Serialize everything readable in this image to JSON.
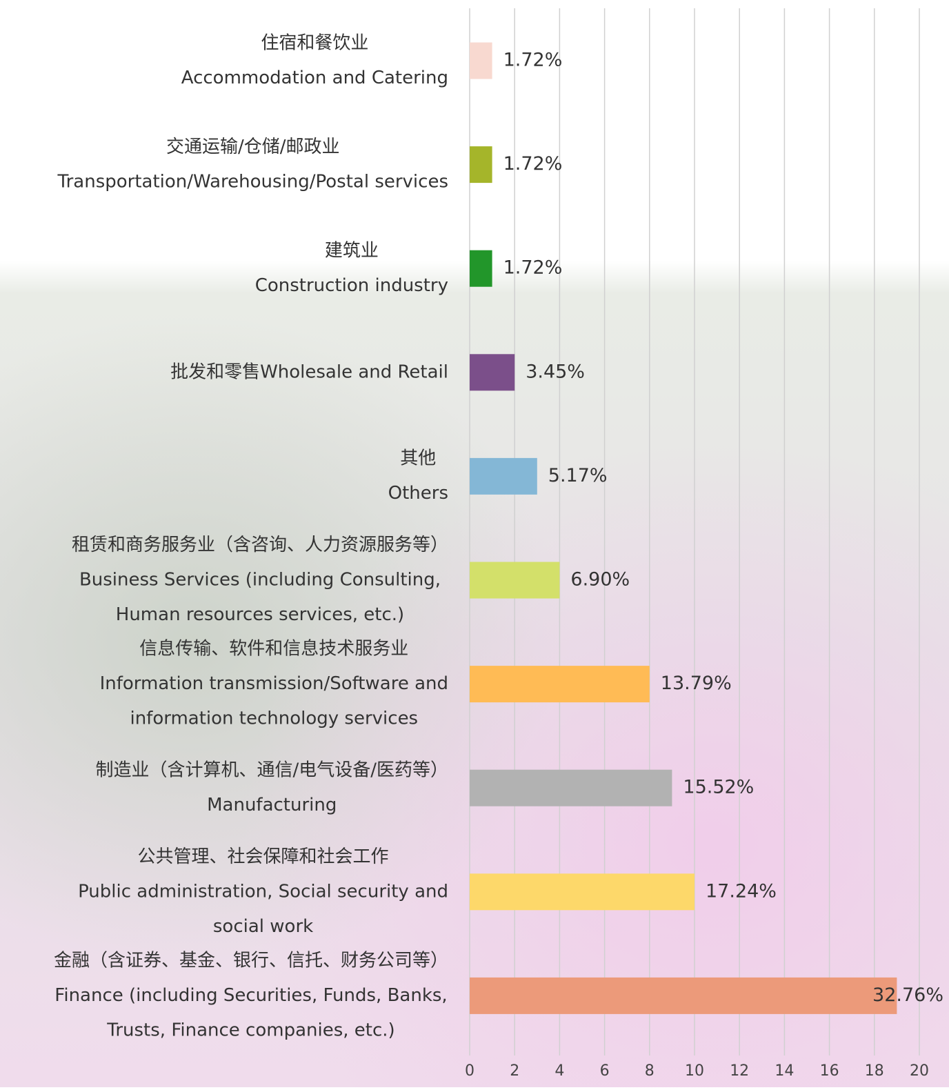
{
  "chart_data": {
    "type": "barh",
    "categories": [
      [
        "住宿和餐饮业",
        "Accommodation and Catering"
      ],
      [
        "交通运输/仓储/邮政业",
        "Transportation/Warehousing/Postal services"
      ],
      [
        "建筑业",
        "Construction industry"
      ],
      [
        "批发和零售Wholesale and Retail"
      ],
      [
        "其他",
        "Others"
      ],
      [
        "租赁和商务服务业（含咨询、人力资源服务等）",
        "Business Services (including Consulting,",
        "Human resources services, etc.)"
      ],
      [
        "信息传输、软件和信息技术服务业",
        "Information transmission/Software and",
        "information technology services"
      ],
      [
        "制造业（含计算机、通信/电气设备/医药等）",
        "Manufacturing"
      ],
      [
        "公共管理、社会保障和社会工作",
        "Public administration, Social security and",
        "social work"
      ],
      [
        "金融（含证券、基金、银行、信托、财务公司等）",
        "Finance (including Securities, Funds, Banks,",
        "Trusts, Finance companies, etc.)"
      ]
    ],
    "values": [
      1,
      1,
      1,
      2,
      3,
      4,
      8,
      9,
      10,
      19
    ],
    "value_labels": [
      "1.72%",
      "1.72%",
      "1.72%",
      "3.45%",
      "5.17%",
      "6.90%",
      "13.79%",
      "15.52%",
      "17.24%",
      "32.76%"
    ],
    "colors": [
      "#f8d9d0",
      "#a5b52a",
      "#22962a",
      "#7b4f8a",
      "#84b7d6",
      "#d3e06a",
      "#ffbb55",
      "#b2b2b2",
      "#fdd86a",
      "#ec9a7a"
    ],
    "xlim": [
      0,
      20
    ],
    "xticks": [
      0,
      2,
      4,
      6,
      8,
      10,
      12,
      14,
      16,
      18,
      20
    ],
    "grid": true
  }
}
